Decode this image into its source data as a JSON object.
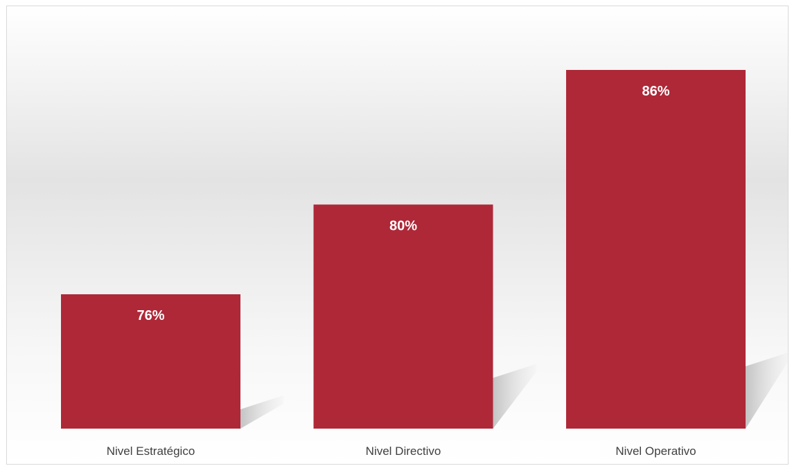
{
  "chart_data": {
    "type": "bar",
    "categories": [
      "Nivel Estratégico",
      "Nivel Directivo",
      "Nivel Operativo"
    ],
    "values": [
      76,
      80,
      86
    ],
    "value_labels": [
      "76%",
      "80%",
      "86%"
    ],
    "title": "",
    "xlabel": "",
    "ylabel": "",
    "grid": false,
    "legend": "none"
  },
  "colors": {
    "bar": "#ae2838",
    "label": "#ffffff",
    "axis_text": "#404040"
  }
}
